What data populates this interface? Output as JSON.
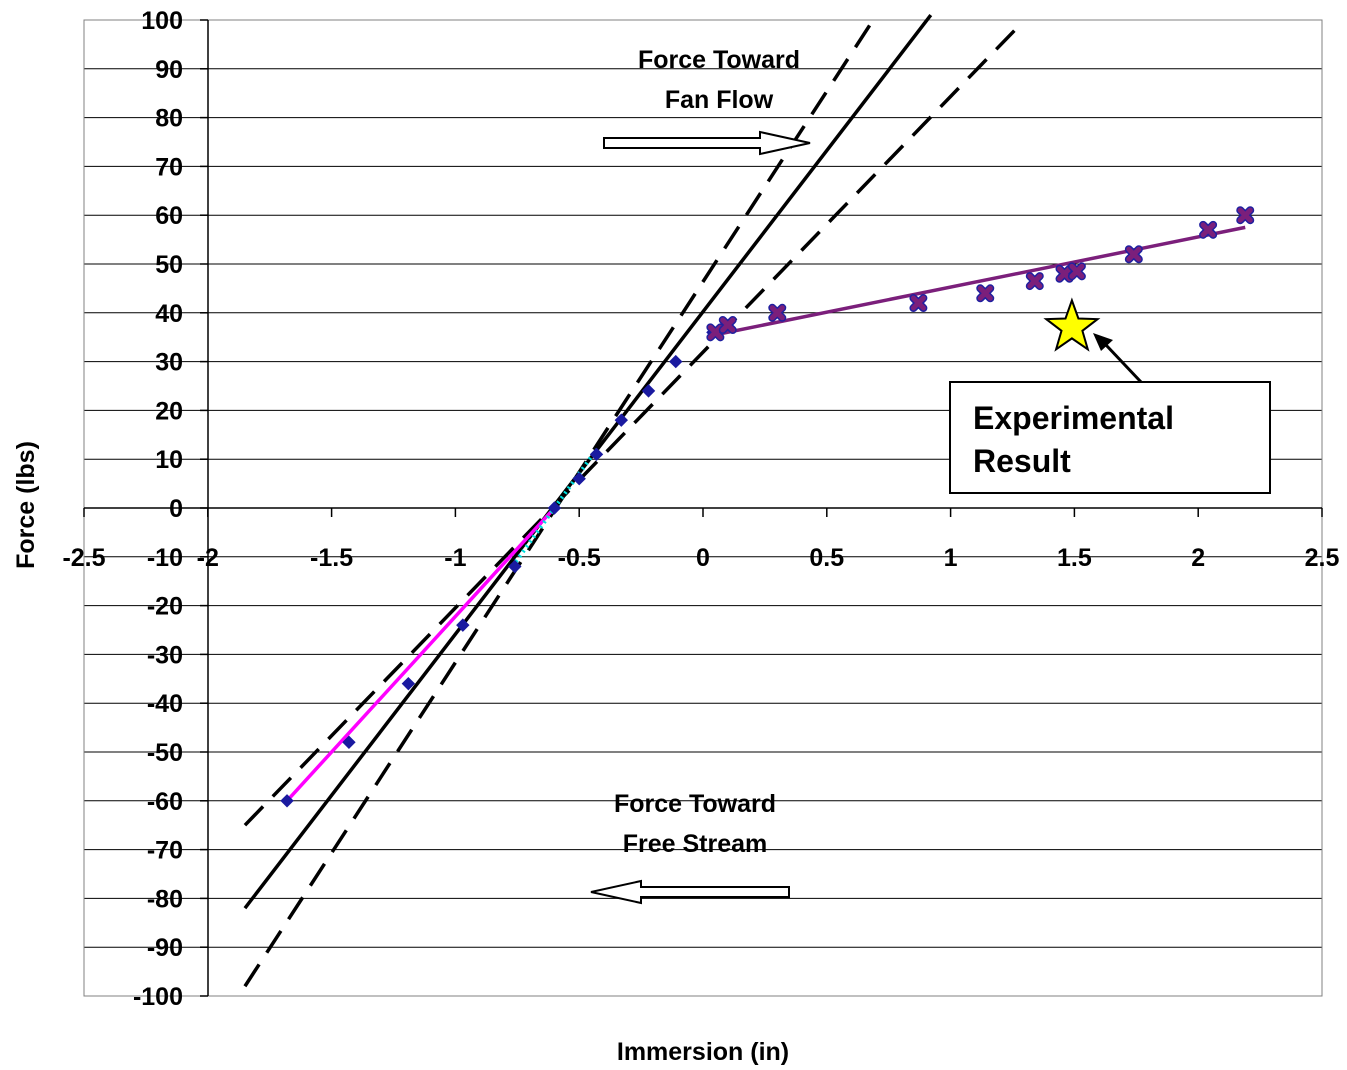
{
  "chart_data": {
    "type": "scatter",
    "title": "",
    "xlabel": "Immersion (in)",
    "ylabel": "Force (lbs)",
    "xlim": [
      -2.5,
      2.5
    ],
    "ylim": [
      -100,
      100
    ],
    "x_ticks": [
      "-2.5",
      "-2",
      "-1.5",
      "-1",
      "-0.5",
      "0",
      "0.5",
      "1",
      "1.5",
      "2",
      "2.5"
    ],
    "y_ticks": [
      "100",
      "90",
      "80",
      "70",
      "60",
      "50",
      "40",
      "30",
      "20",
      "10",
      "0",
      "-10",
      "-20",
      "-30",
      "-40",
      "-50",
      "-60",
      "-70",
      "-80",
      "-90",
      "-100"
    ],
    "grid": "horizontal",
    "legend": "none",
    "series": [
      {
        "marker": "diamond",
        "color": "#1a1aa0",
        "points": [
          [
            -1.68,
            -60
          ],
          [
            -1.43,
            -48
          ],
          [
            -1.19,
            -36
          ],
          [
            -0.97,
            -24
          ],
          [
            -0.76,
            -12
          ],
          [
            -0.6,
            0
          ],
          [
            -0.5,
            6
          ],
          [
            -0.43,
            11
          ],
          [
            -0.33,
            18
          ],
          [
            -0.22,
            24
          ],
          [
            -0.11,
            30
          ],
          [
            0.04,
            36
          ]
        ]
      },
      {
        "marker": "x",
        "color": "#7b1f7b",
        "points": [
          [
            0.05,
            36
          ],
          [
            0.1,
            37.5
          ],
          [
            0.3,
            40
          ],
          [
            0.87,
            42
          ],
          [
            1.14,
            44
          ],
          [
            1.34,
            46.5
          ],
          [
            1.46,
            48
          ],
          [
            1.51,
            48.5
          ],
          [
            1.74,
            52
          ],
          [
            2.04,
            57
          ],
          [
            2.19,
            60
          ]
        ]
      }
    ],
    "lines": [
      {
        "style": "solid",
        "color": "#000000",
        "points": [
          [
            -1.85,
            -82
          ],
          [
            0.92,
            101
          ]
        ]
      },
      {
        "style": "dashed",
        "color": "#000000",
        "points": [
          [
            -1.85,
            -98
          ],
          [
            0.7,
            101
          ]
        ]
      },
      {
        "style": "dashed",
        "color": "#000000",
        "points": [
          [
            -1.85,
            -65
          ],
          [
            1.28,
            99
          ]
        ]
      },
      {
        "style": "solid",
        "color": "#ff00ff",
        "points": [
          [
            -1.68,
            -60
          ],
          [
            -0.6,
            0
          ]
        ]
      },
      {
        "style": "solid",
        "color": "#7b1f7b",
        "points": [
          [
            0.05,
            35.5
          ],
          [
            2.19,
            57.5
          ]
        ]
      },
      {
        "style": "dotted",
        "color": "#00dddd",
        "points": [
          [
            -0.77,
            -12
          ],
          [
            -0.43,
            12
          ]
        ]
      }
    ],
    "experimental_result": {
      "x": 1.49,
      "y": 37,
      "marker": "star",
      "color": "#ffff00"
    },
    "annotations": {
      "top_line1": "Force Toward",
      "top_line2": "Fan Flow",
      "bottom_line1": "Force Toward",
      "bottom_line2": "Free Stream",
      "callout_line1": "Experimental",
      "callout_line2": "Result"
    }
  }
}
